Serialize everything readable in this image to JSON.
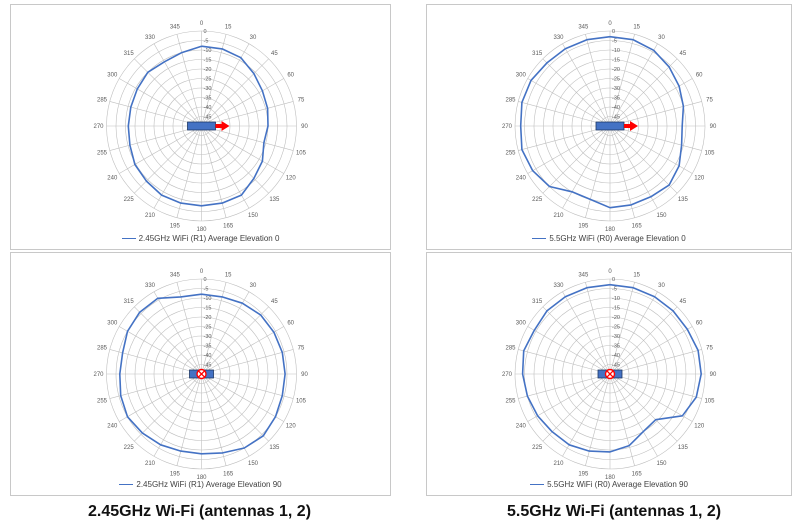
{
  "colors": {
    "series": "#4472c4",
    "grid": "#bfbfbf",
    "antenna": "#4472c4",
    "arrow": "#ff0000",
    "marker": "#ff0000"
  },
  "captions": {
    "left": "2.45GHz Wi-Fi (antennas 1, 2)",
    "right": "5.5GHz Wi-Fi (antennas 1, 2)"
  },
  "radial_ticks": [
    "0",
    "-5",
    "-10",
    "-15",
    "-20",
    "-25",
    "-30",
    "-35",
    "-40",
    "-45",
    "-50"
  ],
  "angle_ticks": [
    "0",
    "15",
    "30",
    "45",
    "60",
    "75",
    "90",
    "105",
    "120",
    "135",
    "150",
    "165",
    "180",
    "195",
    "210",
    "225",
    "240",
    "255",
    "270",
    "285",
    "300",
    "315",
    "330",
    "345"
  ],
  "chart_data": [
    {
      "type": "line",
      "polar": true,
      "series": [
        {
          "name": "2.45GHz WiFi (R1) Average Elevation 0",
          "angle_step_deg": 15,
          "values": [
            -8,
            -8,
            -8.5,
            -11,
            -13,
            -14,
            -15,
            -16,
            -13,
            -11,
            -8,
            -8,
            -8,
            -8,
            -8,
            -9,
            -9.5,
            -11,
            -11.5,
            -11.5,
            -11,
            -10,
            -11,
            -10
          ]
        }
      ],
      "r_range": [
        -50,
        0
      ],
      "legend": "bottom",
      "marker_icon": "arrow-right-icon"
    },
    {
      "type": "line",
      "polar": true,
      "series": [
        {
          "name": "5.5GHz WiFi (R0) Average Elevation 0",
          "angle_step_deg": 15,
          "values": [
            -3,
            -3,
            -4,
            -6,
            -8,
            -10,
            -12,
            -11,
            -8,
            -6,
            -7,
            -7,
            -7,
            -10,
            -10,
            -5,
            -3,
            -2,
            -3,
            -2,
            -2,
            -3,
            -3,
            -3
          ]
        }
      ],
      "r_range": [
        -50,
        0
      ],
      "legend": "bottom",
      "marker_icon": "arrow-right-icon"
    },
    {
      "type": "line",
      "polar": true,
      "series": [
        {
          "name": "2.45GHz WiFi (R1) Average Elevation 90",
          "angle_step_deg": 15,
          "values": [
            -8,
            -8,
            -7,
            -6,
            -6,
            -6,
            -6,
            -6,
            -5,
            -4,
            -5,
            -7,
            -8,
            -8,
            -7,
            -6,
            -5,
            -6,
            -7,
            -7,
            -5,
            -4,
            -4,
            -8
          ]
        }
      ],
      "r_range": [
        -50,
        0
      ],
      "legend": "bottom",
      "marker_icon": "cross-circle-icon"
    },
    {
      "type": "line",
      "polar": true,
      "series": [
        {
          "name": "5.5GHz WiFi (R0) Average Elevation 90",
          "angle_step_deg": 15,
          "values": [
            -3,
            -3,
            -3,
            -3,
            -3,
            -2,
            -2,
            -3,
            -6,
            -16,
            -15,
            -11,
            -9,
            -8,
            -7,
            -7,
            -6,
            -5,
            -4,
            -3,
            -4,
            -3,
            -3,
            -3
          ]
        }
      ],
      "r_range": [
        -50,
        0
      ],
      "legend": "bottom",
      "marker_icon": "cross-circle-icon"
    }
  ]
}
